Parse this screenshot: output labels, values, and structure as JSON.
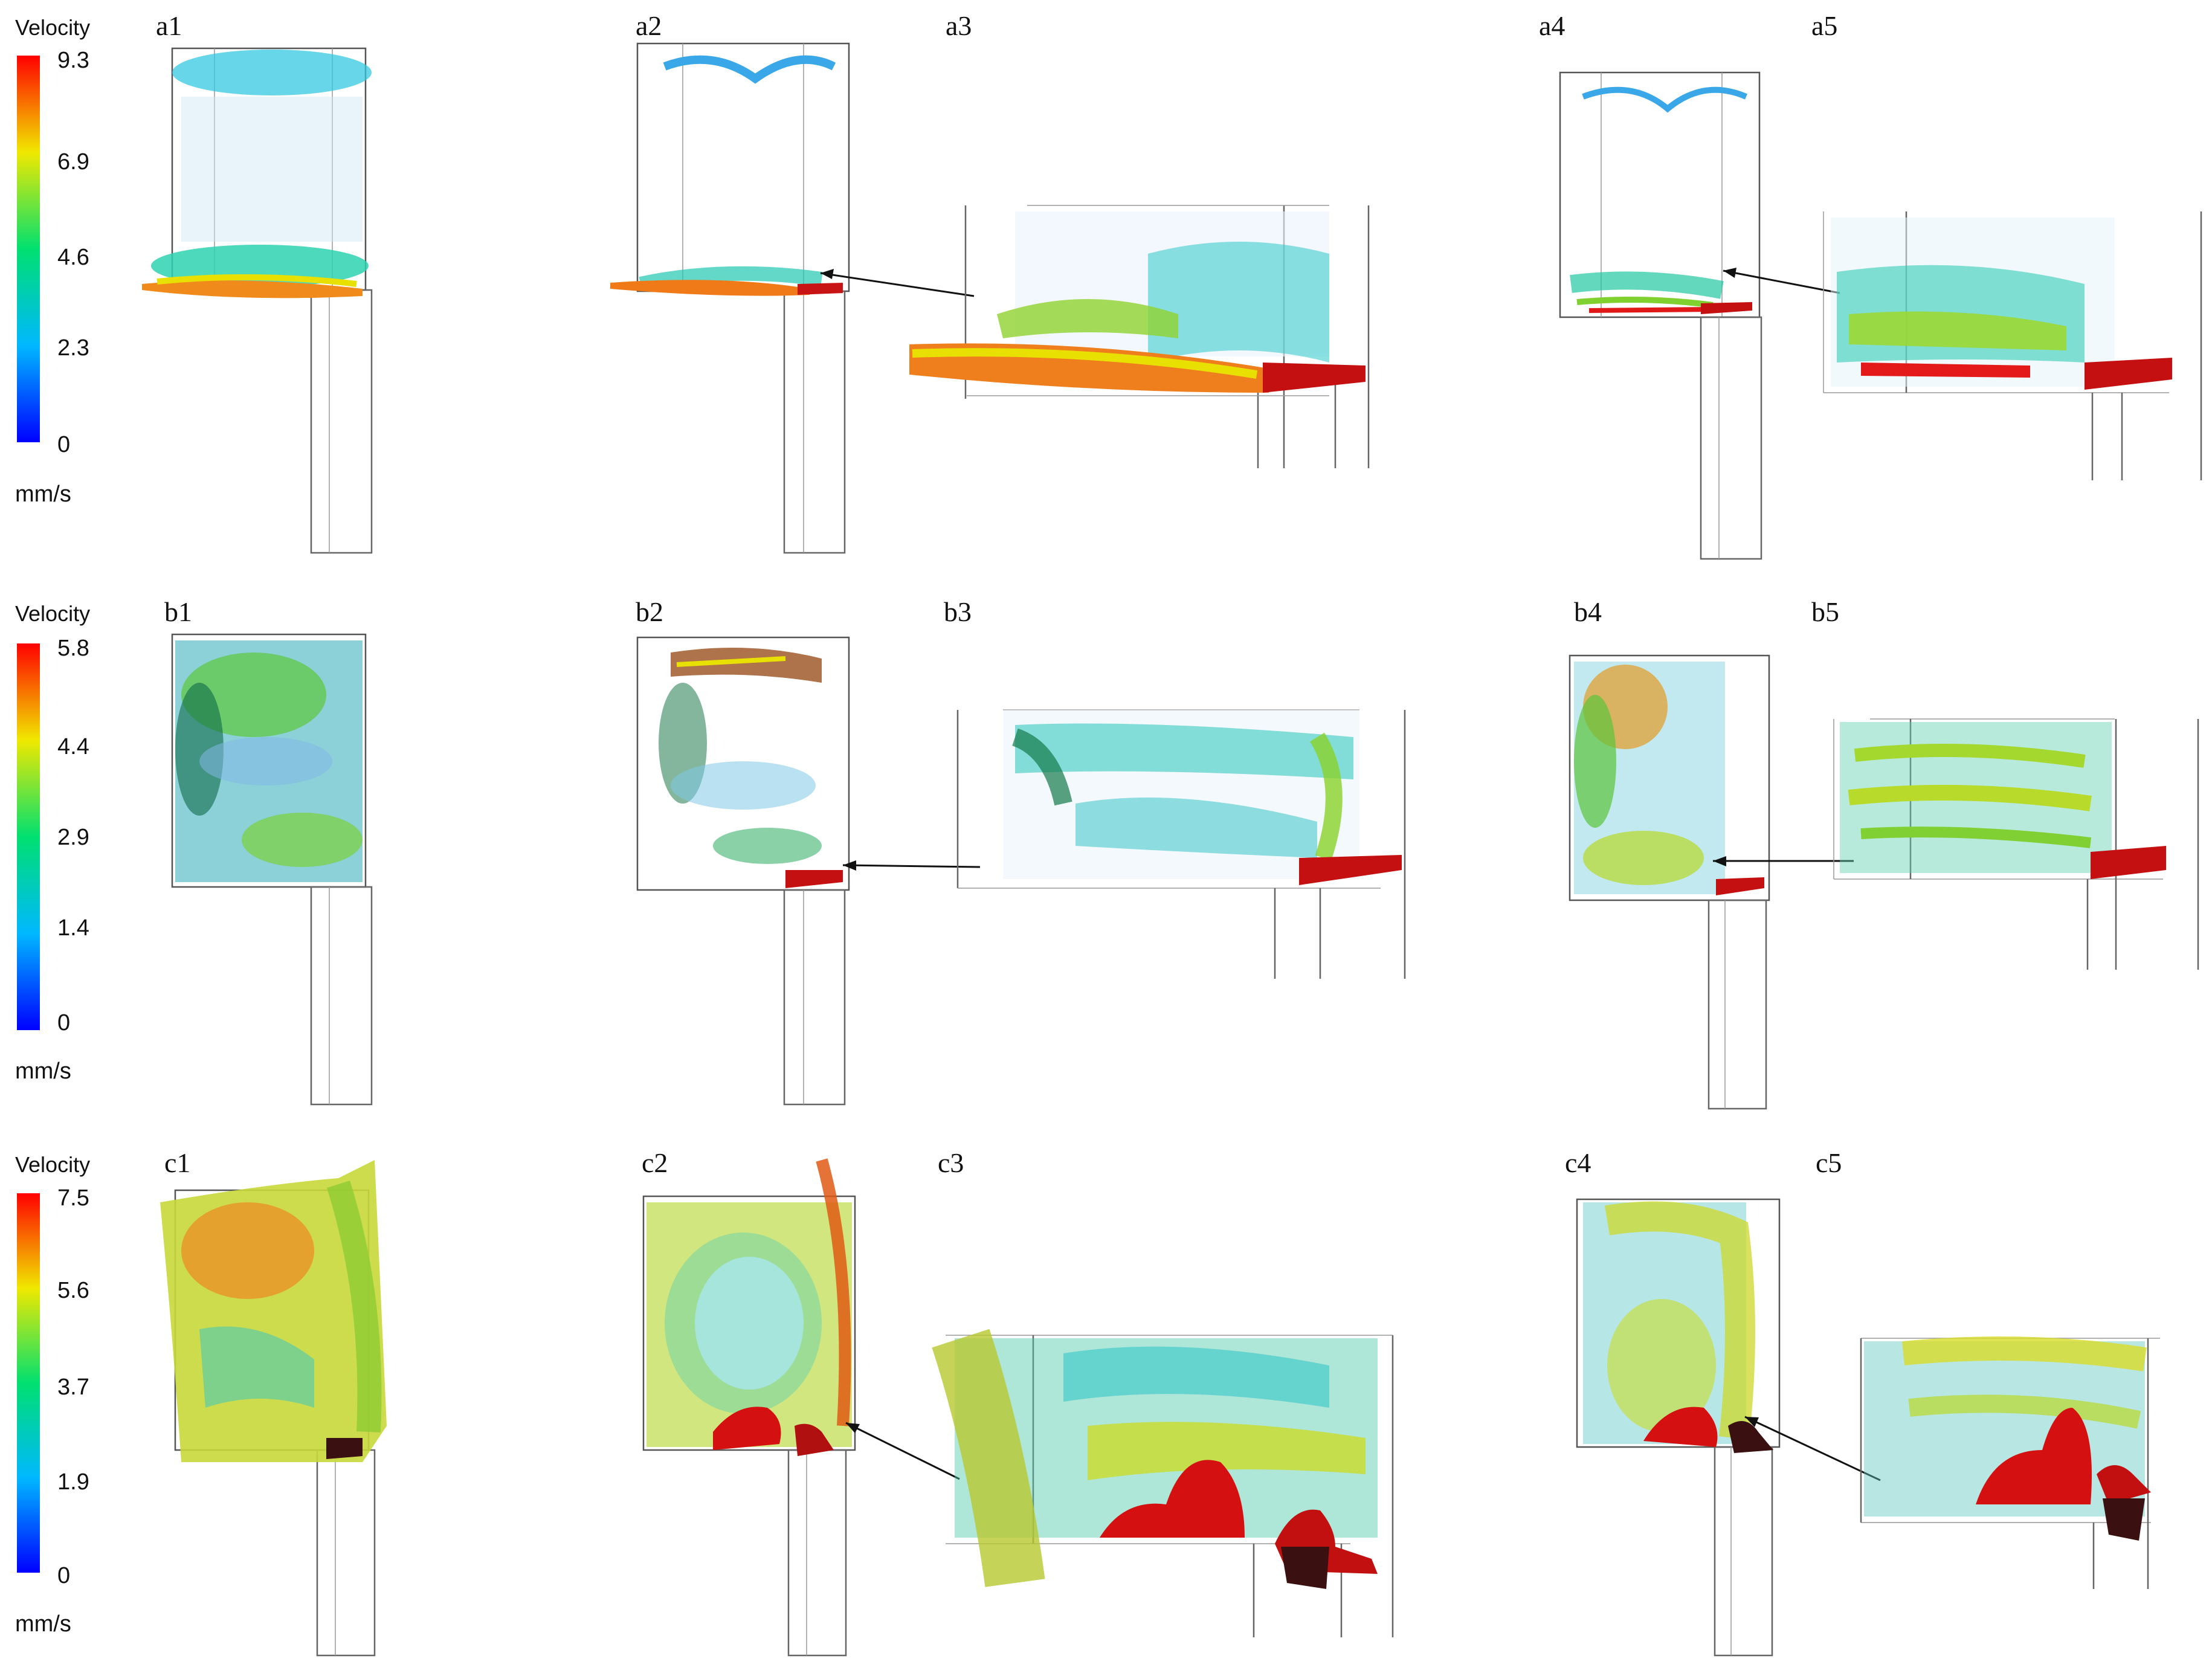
{
  "rows": [
    {
      "id": "a",
      "colorbar": {
        "title": "Velocity",
        "ticks": [
          "9.3",
          "6.9",
          "4.6",
          "2.3",
          "0"
        ],
        "unit": "mm/s"
      },
      "panels": [
        "a1",
        "a2",
        "a3",
        "a4",
        "a5"
      ]
    },
    {
      "id": "b",
      "colorbar": {
        "title": "Velocity",
        "ticks": [
          "5.8",
          "4.4",
          "2.9",
          "1.4",
          "0"
        ],
        "unit": "mm/s"
      },
      "panels": [
        "b1",
        "b2",
        "b3",
        "b4",
        "b5"
      ]
    },
    {
      "id": "c",
      "colorbar": {
        "title": "Velocity",
        "ticks": [
          "7.5",
          "5.6",
          "3.7",
          "1.9",
          "0"
        ],
        "unit": "mm/s"
      },
      "panels": [
        "c1",
        "c2",
        "c3",
        "c4",
        "c5"
      ]
    }
  ],
  "colormap": [
    "#0000ff",
    "#00c0ff",
    "#00e070",
    "#f0e800",
    "#ff0000"
  ],
  "melt_color": "#d41010"
}
